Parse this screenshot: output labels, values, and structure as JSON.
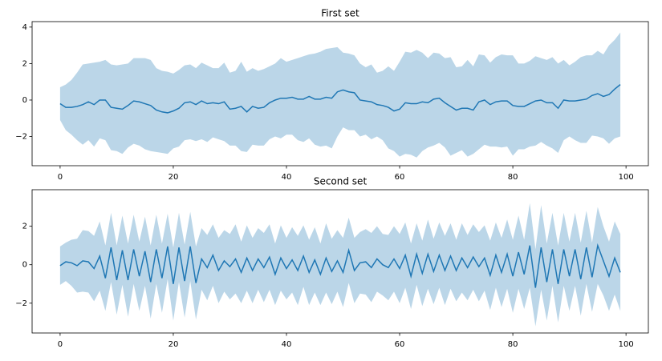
{
  "chart_data": [
    {
      "type": "line",
      "title": "First set",
      "x": [
        0,
        1,
        2,
        3,
        4,
        5,
        6,
        7,
        8,
        9,
        10,
        11,
        12,
        13,
        14,
        15,
        16,
        17,
        18,
        19,
        20,
        21,
        22,
        23,
        24,
        25,
        26,
        27,
        28,
        29,
        30,
        31,
        32,
        33,
        34,
        35,
        36,
        37,
        38,
        39,
        40,
        41,
        42,
        43,
        44,
        45,
        46,
        47,
        48,
        49,
        50,
        51,
        52,
        53,
        54,
        55,
        56,
        57,
        58,
        59,
        60,
        61,
        62,
        63,
        64,
        65,
        66,
        67,
        68,
        69,
        70,
        71,
        72,
        73,
        74,
        75,
        76,
        77,
        78,
        79,
        80,
        81,
        82,
        83,
        84,
        85,
        86,
        87,
        88,
        89,
        90,
        91,
        92,
        93,
        94,
        95,
        96,
        97,
        98,
        99
      ],
      "series": [
        {
          "color": "#1f77b4",
          "band_color": "#1f77b4",
          "band_opacity": 0.3,
          "values": [
            -0.2,
            -0.4,
            -0.4,
            -0.35,
            -0.25,
            -0.1,
            -0.25,
            0.0,
            0.0,
            -0.4,
            -0.45,
            -0.5,
            -0.3,
            -0.05,
            -0.1,
            -0.2,
            -0.3,
            -0.55,
            -0.65,
            -0.7,
            -0.6,
            -0.45,
            -0.15,
            -0.1,
            -0.25,
            -0.05,
            -0.2,
            -0.15,
            -0.2,
            -0.1,
            -0.5,
            -0.45,
            -0.35,
            -0.65,
            -0.35,
            -0.45,
            -0.4,
            -0.15,
            0.0,
            0.1,
            0.1,
            0.15,
            0.05,
            0.05,
            0.2,
            0.05,
            0.05,
            0.15,
            0.1,
            0.45,
            0.55,
            0.45,
            0.4,
            0.0,
            -0.05,
            -0.1,
            -0.25,
            -0.3,
            -0.4,
            -0.6,
            -0.5,
            -0.15,
            -0.2,
            -0.2,
            -0.1,
            -0.15,
            0.05,
            0.1,
            -0.15,
            -0.35,
            -0.55,
            -0.45,
            -0.45,
            -0.55,
            -0.1,
            0.0,
            -0.25,
            -0.1,
            -0.05,
            -0.05,
            -0.3,
            -0.35,
            -0.35,
            -0.2,
            -0.05,
            0.0,
            -0.15,
            -0.15,
            -0.45,
            0.0,
            -0.05,
            -0.05,
            0.0,
            0.05,
            0.25,
            0.35,
            0.2,
            0.3,
            0.6,
            0.85
          ],
          "errors": [
            0.9,
            1.25,
            1.5,
            1.85,
            2.2,
            2.1,
            2.3,
            2.1,
            2.2,
            2.35,
            2.35,
            2.45,
            2.3,
            2.35,
            2.4,
            2.5,
            2.5,
            2.3,
            2.25,
            2.25,
            2.05,
            2.1,
            2.05,
            2.05,
            2.0,
            2.1,
            2.1,
            1.9,
            1.95,
            2.15,
            2.0,
            2.05,
            2.45,
            2.2,
            2.1,
            2.05,
            2.1,
            2.0,
            2.0,
            2.2,
            2.0,
            2.05,
            2.25,
            2.35,
            2.3,
            2.5,
            2.6,
            2.65,
            2.75,
            2.45,
            2.05,
            2.1,
            2.05,
            2.0,
            1.85,
            2.05,
            1.75,
            1.9,
            2.25,
            2.2,
            2.6,
            2.8,
            2.8,
            2.95,
            2.7,
            2.45,
            2.55,
            2.45,
            2.45,
            2.7,
            2.35,
            2.3,
            2.65,
            2.4,
            2.6,
            2.45,
            2.3,
            2.45,
            2.55,
            2.5,
            2.75,
            2.35,
            2.35,
            2.35,
            2.45,
            2.3,
            2.35,
            2.5,
            2.45,
            2.2,
            1.95,
            2.15,
            2.35,
            2.4,
            2.2,
            2.35,
            2.3,
            2.7,
            2.7,
            2.85
          ]
        }
      ],
      "xlim": [
        -4.95,
        103.95
      ],
      "xticks": [
        0,
        20,
        40,
        60,
        80,
        100
      ],
      "ylim": [
        -3.6,
        4.3
      ],
      "yticks": [
        {
          "value": -2,
          "label": "−2"
        },
        0,
        2,
        4
      ]
    },
    {
      "type": "line",
      "title": "Second set",
      "x": [
        0,
        1,
        2,
        3,
        4,
        5,
        6,
        7,
        8,
        9,
        10,
        11,
        12,
        13,
        14,
        15,
        16,
        17,
        18,
        19,
        20,
        21,
        22,
        23,
        24,
        25,
        26,
        27,
        28,
        29,
        30,
        31,
        32,
        33,
        34,
        35,
        36,
        37,
        38,
        39,
        40,
        41,
        42,
        43,
        44,
        45,
        46,
        47,
        48,
        49,
        50,
        51,
        52,
        53,
        54,
        55,
        56,
        57,
        58,
        59,
        60,
        61,
        62,
        63,
        64,
        65,
        66,
        67,
        68,
        69,
        70,
        71,
        72,
        73,
        74,
        75,
        76,
        77,
        78,
        79,
        80,
        81,
        82,
        83,
        84,
        85,
        86,
        87,
        88,
        89,
        90,
        91,
        92,
        93,
        94,
        95,
        96,
        97,
        98,
        99
      ],
      "series": [
        {
          "color": "#1f77b4",
          "band_color": "#1f77b4",
          "band_opacity": 0.3,
          "values": [
            -0.05,
            0.15,
            0.1,
            -0.05,
            0.2,
            0.15,
            -0.2,
            0.45,
            -0.7,
            0.9,
            -0.8,
            0.75,
            -0.8,
            0.8,
            -0.6,
            0.7,
            -0.9,
            0.8,
            -0.7,
            0.95,
            -1.0,
            0.9,
            -0.85,
            0.95,
            -0.95,
            0.3,
            -0.15,
            0.5,
            -0.3,
            0.2,
            -0.1,
            0.3,
            -0.4,
            0.35,
            -0.3,
            0.3,
            -0.15,
            0.4,
            -0.5,
            0.35,
            -0.2,
            0.25,
            -0.3,
            0.45,
            -0.4,
            0.25,
            -0.5,
            0.35,
            -0.35,
            0.2,
            -0.4,
            0.75,
            -0.3,
            0.1,
            0.15,
            -0.15,
            0.3,
            0.0,
            -0.15,
            0.3,
            -0.2,
            0.5,
            -0.6,
            0.55,
            -0.45,
            0.55,
            -0.35,
            0.5,
            -0.3,
            0.45,
            -0.3,
            0.35,
            -0.15,
            0.4,
            -0.1,
            0.35,
            -0.55,
            0.5,
            -0.4,
            0.55,
            -0.6,
            0.65,
            -0.5,
            1.0,
            -1.2,
            0.9,
            -0.9,
            0.8,
            -1.0,
            0.8,
            -0.6,
            0.8,
            -0.75,
            0.9,
            -0.65,
            1.0,
            0.2,
            -0.6,
            0.35,
            -0.4
          ],
          "errors": [
            1.0,
            1.0,
            1.2,
            1.4,
            1.6,
            1.6,
            1.7,
            1.8,
            1.7,
            1.8,
            1.8,
            1.8,
            1.9,
            1.8,
            1.8,
            1.8,
            1.9,
            1.8,
            1.8,
            1.7,
            1.9,
            1.8,
            1.9,
            1.8,
            1.9,
            1.6,
            1.7,
            1.6,
            1.7,
            1.6,
            1.7,
            1.8,
            1.6,
            1.7,
            1.7,
            1.6,
            1.8,
            1.7,
            1.6,
            1.7,
            1.6,
            1.7,
            1.8,
            1.6,
            1.7,
            1.7,
            1.6,
            1.8,
            1.7,
            1.6,
            1.8,
            1.7,
            1.7,
            1.6,
            1.7,
            1.8,
            1.7,
            1.6,
            1.7,
            1.7,
            1.8,
            1.7,
            1.7,
            1.6,
            1.7,
            1.8,
            1.7,
            1.7,
            1.8,
            1.7,
            1.6,
            1.8,
            1.7,
            1.7,
            1.8,
            1.7,
            1.8,
            1.7,
            1.8,
            1.8,
            1.9,
            1.9,
            1.8,
            2.2,
            2.0,
            2.2,
            2.0,
            1.9,
            2.0,
            1.9,
            1.8,
            1.9,
            1.9,
            1.9,
            1.8,
            2.0,
            1.8,
            1.8,
            1.9,
            2.0
          ]
        }
      ],
      "xlim": [
        -4.95,
        103.95
      ],
      "xticks": [
        0,
        20,
        40,
        60,
        80,
        100
      ],
      "ylim": [
        -3.55,
        3.9
      ],
      "yticks": [
        {
          "value": -2,
          "label": "−2"
        },
        0,
        2
      ]
    }
  ]
}
